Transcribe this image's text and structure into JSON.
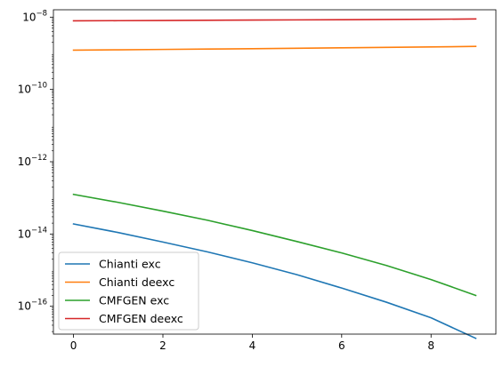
{
  "chart_data": {
    "type": "line",
    "title": "",
    "xlabel": "",
    "ylabel": "",
    "yscale": "log",
    "xlim": [
      -0.45,
      9.45
    ],
    "ylim": [
      1.7e-17,
      1.6e-08
    ],
    "grid": false,
    "legend_position": "lower-left",
    "x": [
      0,
      1,
      2,
      3,
      4,
      5,
      6,
      7,
      8,
      9
    ],
    "x_ticks": [
      {
        "value": 0,
        "label": "0"
      },
      {
        "value": 2,
        "label": "2"
      },
      {
        "value": 4,
        "label": "4"
      },
      {
        "value": 6,
        "label": "6"
      },
      {
        "value": 8,
        "label": "8"
      }
    ],
    "y_ticks": [
      {
        "value": 1e-16,
        "base": "10",
        "exp": "−16"
      },
      {
        "value": 1e-14,
        "base": "10",
        "exp": "−14"
      },
      {
        "value": 1e-12,
        "base": "10",
        "exp": "−12"
      },
      {
        "value": 1e-10,
        "base": "10",
        "exp": "−10"
      },
      {
        "value": 1e-08,
        "base": "10",
        "exp": "−8"
      }
    ],
    "series": [
      {
        "name": "Chianti exc",
        "color": "#1f77b4",
        "values": [
          1.9e-14,
          1.1e-14,
          6e-15,
          3.2e-15,
          1.6e-15,
          7.5e-16,
          3.2e-16,
          1.3e-16,
          4.8e-17,
          1.3e-17
        ]
      },
      {
        "name": "Chianti deexc",
        "color": "#ff7f0e",
        "values": [
          1.22e-09,
          1.25e-09,
          1.28e-09,
          1.31e-09,
          1.34e-09,
          1.38e-09,
          1.42e-09,
          1.46e-09,
          1.5e-09,
          1.55e-09
        ]
      },
      {
        "name": "CMFGEN exc",
        "color": "#2ca02c",
        "values": [
          1.25e-13,
          7.5e-14,
          4.3e-14,
          2.4e-14,
          1.25e-14,
          6.2e-15,
          3e-15,
          1.35e-15,
          5.5e-16,
          2e-16
        ]
      },
      {
        "name": "CMFGEN deexc",
        "color": "#d62728",
        "values": [
          7.9e-09,
          8e-09,
          8.1e-09,
          8.2e-09,
          8.3e-09,
          8.4e-09,
          8.5e-09,
          8.6e-09,
          8.75e-09,
          8.9e-09
        ]
      }
    ]
  }
}
